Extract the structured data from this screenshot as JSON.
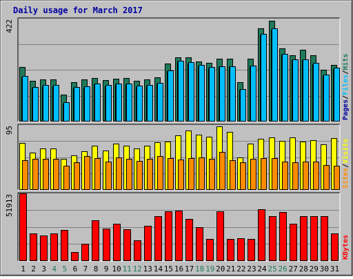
{
  "chart_data": [
    {
      "panel": "hits-files-pages",
      "type": "bar",
      "title": "Daily usage for March 2017",
      "y_max_label": "422",
      "legend": [
        "Pages",
        "Files",
        "Hits"
      ],
      "legend_separator": "/",
      "categories": [
        "1",
        "2",
        "3",
        "4",
        "5",
        "6",
        "7",
        "8",
        "9",
        "10",
        "11",
        "12",
        "13",
        "14",
        "15",
        "16",
        "17",
        "18",
        "19",
        "20",
        "21",
        "22",
        "23",
        "24",
        "25",
        "26",
        "27",
        "28",
        "29",
        "30",
        "31"
      ],
      "weekend_days": [
        "4",
        "5",
        "11",
        "12",
        "18",
        "19",
        "25",
        "26"
      ],
      "ylim": [
        0,
        422
      ],
      "series": [
        {
          "name": "Hits",
          "values": [
            221,
            165,
            170,
            170,
            107,
            160,
            170,
            176,
            168,
            175,
            176,
            166,
            172,
            181,
            236,
            262,
            262,
            244,
            240,
            256,
            256,
            161,
            258,
            383,
            414,
            300,
            270,
            295,
            271,
            212,
            232
          ]
        },
        {
          "name": "Files",
          "values": [
            185,
            140,
            147,
            147,
            78,
            140,
            143,
            155,
            148,
            155,
            155,
            145,
            149,
            158,
            208,
            248,
            241,
            230,
            222,
            226,
            226,
            131,
            229,
            360,
            382,
            278,
            255,
            255,
            239,
            190,
            219
          ]
        },
        {
          "name": "Pages",
          "values": [
            181,
            136,
            142,
            142,
            72,
            135,
            138,
            151,
            142,
            151,
            151,
            140,
            145,
            155,
            204,
            244,
            237,
            225,
            218,
            222,
            222,
            127,
            225,
            355,
            377,
            273,
            250,
            250,
            234,
            185,
            214
          ]
        }
      ],
      "colors": {
        "Hits": "#1f7a5a",
        "Files": "#00bfff",
        "Pages": "#0000a0"
      }
    },
    {
      "panel": "visits-sites",
      "type": "bar",
      "y_max_label": "95",
      "legend": [
        "Sites",
        "Visits"
      ],
      "legend_separator": "/",
      "categories": [
        "1",
        "2",
        "3",
        "4",
        "5",
        "6",
        "7",
        "8",
        "9",
        "10",
        "11",
        "12",
        "13",
        "14",
        "15",
        "16",
        "17",
        "18",
        "19",
        "20",
        "21",
        "22",
        "23",
        "24",
        "25",
        "26",
        "27",
        "28",
        "29",
        "30",
        "31"
      ],
      "ylim": [
        0,
        95
      ],
      "series": [
        {
          "name": "Visits",
          "values": [
            68,
            54,
            60,
            60,
            45,
            50,
            56,
            64,
            57,
            67,
            64,
            60,
            64,
            69,
            70,
            80,
            87,
            81,
            78,
            93,
            85,
            47,
            67,
            75,
            77,
            72,
            77,
            70,
            73,
            66,
            76
          ]
        },
        {
          "name": "Sites",
          "values": [
            43,
            45,
            45,
            45,
            35,
            40,
            49,
            46,
            41,
            47,
            45,
            42,
            45,
            49,
            46,
            44,
            46,
            47,
            45,
            55,
            43,
            40,
            45,
            46,
            46,
            41,
            40,
            41,
            41,
            36,
            35
          ]
        }
      ],
      "colors": {
        "Visits": "#ffff00",
        "Sites": "#ff8c00"
      }
    },
    {
      "panel": "kbytes",
      "type": "bar",
      "y_max_label": "51913",
      "legend": [
        "KBytes"
      ],
      "categories": [
        "1",
        "2",
        "3",
        "4",
        "5",
        "6",
        "7",
        "8",
        "9",
        "10",
        "11",
        "12",
        "13",
        "14",
        "15",
        "16",
        "17",
        "18",
        "19",
        "20",
        "21",
        "22",
        "23",
        "24",
        "25",
        "26",
        "27",
        "28",
        "29",
        "30",
        "31"
      ],
      "ylim": [
        0,
        51913
      ],
      "series": [
        {
          "name": "KBytes",
          "values": [
            51913,
            21000,
            19500,
            21000,
            23500,
            6500,
            13000,
            31000,
            24500,
            28500,
            24000,
            15500,
            26500,
            34000,
            38000,
            38500,
            32000,
            25500,
            16500,
            38000,
            16500,
            17000,
            16500,
            39500,
            34500,
            37500,
            28500,
            34000,
            34500,
            34000,
            21000
          ]
        }
      ],
      "colors": {
        "KBytes": "#ff0000"
      }
    }
  ]
}
